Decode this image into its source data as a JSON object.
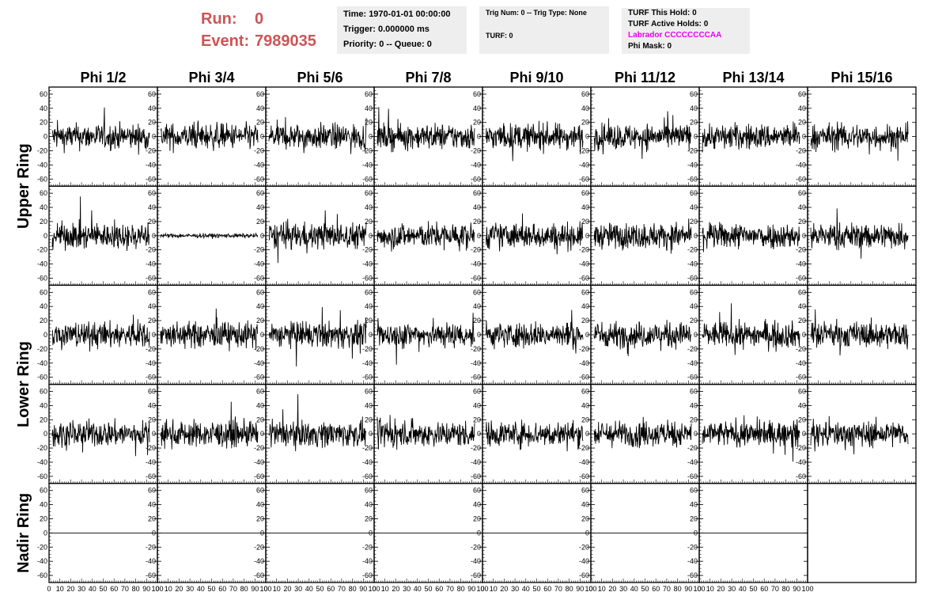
{
  "header": {
    "run_label": "Run:",
    "run_value": "0",
    "event_label": "Event:",
    "event_value": "7989035"
  },
  "info_time": {
    "time": "Time: 1970-01-01 00:00:00",
    "trigger": "Trigger: 0.000000 ms",
    "priority": "Priority: 0 -- Queue: 0"
  },
  "info_trig": {
    "trig": "Trig Num: 0 -- Trig Type: None",
    "turf": "TURF: 0"
  },
  "info_turf": {
    "this_hold": "TURF This Hold: 0",
    "active_holds": "TURF Active Holds: 0",
    "labrador": "Labrador CCCCCCCCAA",
    "phi_mask": "Phi Mask: 0"
  },
  "columns": [
    "Phi 1/2",
    "Phi 3/4",
    "Phi 5/6",
    "Phi 7/8",
    "Phi 9/10",
    "Phi 11/12",
    "Phi 13/14",
    "Phi 15/16"
  ],
  "rings": [
    "Upper Ring",
    "Lower Ring",
    "Nadir Ring"
  ],
  "y_ticks": [
    "60",
    "40",
    "20",
    "0",
    "-20",
    "-40",
    "-60"
  ],
  "x_ticks": [
    "0",
    "10",
    "20",
    "30",
    "40",
    "50",
    "60",
    "70",
    "80",
    "90",
    "100"
  ],
  "colors": {
    "accent": "#cc5555",
    "labrador": "#ee00ee",
    "info_bg": "#eeeeee"
  },
  "chart_data": {
    "type": "line",
    "grid": false,
    "xlim": [
      0,
      100
    ],
    "ylim": [
      -70,
      70
    ],
    "rows": 5,
    "cols": 8,
    "nadir_row_flat": true,
    "nadir_missing_panel": "Phi 15/16",
    "low_amplitude_panel": {
      "row": 2,
      "col": "Phi 3/4"
    }
  }
}
